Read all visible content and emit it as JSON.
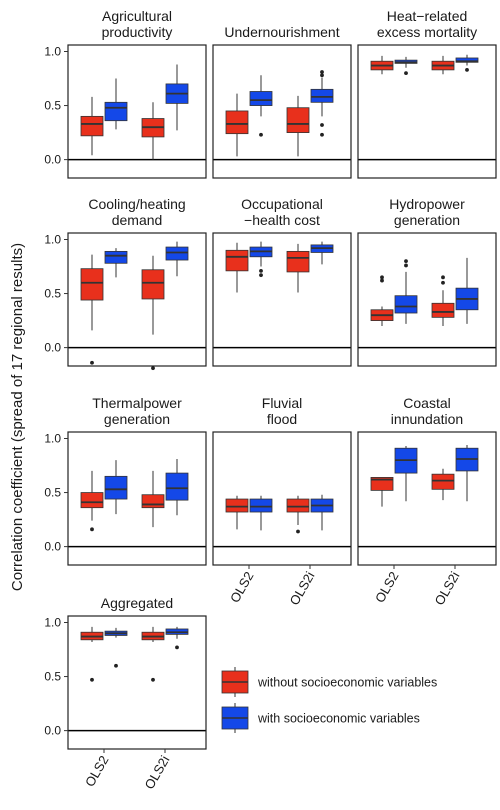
{
  "chart_data": {
    "type": "box",
    "ylabel": "Correlation coefficient (spread of 17 regional results)",
    "ylim": [
      -0.17,
      1.06
    ],
    "yticks": [
      "0.0",
      "0.5",
      "1.0"
    ],
    "categories": [
      "OLS2",
      "OLS2i"
    ],
    "series": [
      {
        "name": "without socioeconomic variables",
        "color": "#e8301c"
      },
      {
        "name": "with socioeconomic variables",
        "color": "#1448e8"
      }
    ],
    "panels": [
      {
        "title": [
          "Agricultural",
          "productivity"
        ],
        "boxes": [
          {
            "category": "OLS2",
            "series": 0,
            "min": 0.04,
            "q1": 0.22,
            "median": 0.33,
            "q3": 0.4,
            "max": 0.58,
            "outliers": []
          },
          {
            "category": "OLS2",
            "series": 1,
            "min": 0.28,
            "q1": 0.36,
            "median": 0.48,
            "q3": 0.53,
            "max": 0.75,
            "outliers": []
          },
          {
            "category": "OLS2i",
            "series": 0,
            "min": 0.0,
            "q1": 0.21,
            "median": 0.3,
            "q3": 0.38,
            "max": 0.53,
            "outliers": []
          },
          {
            "category": "OLS2i",
            "series": 1,
            "min": 0.27,
            "q1": 0.52,
            "median": 0.61,
            "q3": 0.7,
            "max": 0.88,
            "outliers": []
          }
        ]
      },
      {
        "title": [
          "Undernourishment"
        ],
        "boxes": [
          {
            "category": "OLS2",
            "series": 0,
            "min": 0.03,
            "q1": 0.24,
            "median": 0.33,
            "q3": 0.45,
            "max": 0.61,
            "outliers": []
          },
          {
            "category": "OLS2",
            "series": 1,
            "min": 0.4,
            "q1": 0.5,
            "median": 0.55,
            "q3": 0.63,
            "max": 0.78,
            "outliers": [
              0.23
            ]
          },
          {
            "category": "OLS2i",
            "series": 0,
            "min": 0.03,
            "q1": 0.25,
            "median": 0.33,
            "q3": 0.48,
            "max": 0.59,
            "outliers": []
          },
          {
            "category": "OLS2i",
            "series": 1,
            "min": 0.4,
            "q1": 0.53,
            "median": 0.58,
            "q3": 0.65,
            "max": 0.76,
            "outliers": [
              0.23,
              0.32,
              0.78,
              0.81
            ]
          }
        ]
      },
      {
        "title": [
          "Heat−related",
          "excess mortality"
        ],
        "boxes": [
          {
            "category": "OLS2",
            "series": 0,
            "min": 0.79,
            "q1": 0.83,
            "median": 0.87,
            "q3": 0.91,
            "max": 0.96,
            "outliers": []
          },
          {
            "category": "OLS2",
            "series": 1,
            "min": 0.85,
            "q1": 0.89,
            "median": 0.9,
            "q3": 0.92,
            "max": 0.95,
            "outliers": [
              0.8
            ]
          },
          {
            "category": "OLS2i",
            "series": 0,
            "min": 0.79,
            "q1": 0.83,
            "median": 0.87,
            "q3": 0.91,
            "max": 0.96,
            "outliers": []
          },
          {
            "category": "OLS2i",
            "series": 1,
            "min": 0.87,
            "q1": 0.9,
            "median": 0.91,
            "q3": 0.94,
            "max": 0.97,
            "outliers": [
              0.83
            ]
          }
        ]
      },
      {
        "title": [
          "Cooling/heating",
          "demand"
        ],
        "boxes": [
          {
            "category": "OLS2",
            "series": 0,
            "min": 0.16,
            "q1": 0.44,
            "median": 0.6,
            "q3": 0.73,
            "max": 0.86,
            "outliers": [
              -0.14
            ]
          },
          {
            "category": "OLS2",
            "series": 1,
            "min": 0.65,
            "q1": 0.78,
            "median": 0.85,
            "q3": 0.89,
            "max": 0.92,
            "outliers": []
          },
          {
            "category": "OLS2i",
            "series": 0,
            "min": 0.12,
            "q1": 0.45,
            "median": 0.6,
            "q3": 0.72,
            "max": 0.85,
            "outliers": [
              -0.19
            ]
          },
          {
            "category": "OLS2i",
            "series": 1,
            "min": 0.66,
            "q1": 0.81,
            "median": 0.88,
            "q3": 0.93,
            "max": 0.98,
            "outliers": []
          }
        ]
      },
      {
        "title": [
          "Occupational",
          "−health cost"
        ],
        "boxes": [
          {
            "category": "OLS2",
            "series": 0,
            "min": 0.51,
            "q1": 0.71,
            "median": 0.84,
            "q3": 0.9,
            "max": 0.97,
            "outliers": []
          },
          {
            "category": "OLS2",
            "series": 1,
            "min": 0.75,
            "q1": 0.84,
            "median": 0.89,
            "q3": 0.93,
            "max": 0.98,
            "outliers": [
              0.67,
              0.71
            ]
          },
          {
            "category": "OLS2i",
            "series": 0,
            "min": 0.51,
            "q1": 0.7,
            "median": 0.83,
            "q3": 0.89,
            "max": 0.96,
            "outliers": []
          },
          {
            "category": "OLS2i",
            "series": 1,
            "min": 0.77,
            "q1": 0.88,
            "median": 0.92,
            "q3": 0.95,
            "max": 0.98,
            "outliers": []
          }
        ]
      },
      {
        "title": [
          "Hydropower",
          "generation"
        ],
        "boxes": [
          {
            "category": "OLS2",
            "series": 0,
            "min": 0.2,
            "q1": 0.25,
            "median": 0.3,
            "q3": 0.35,
            "max": 0.38,
            "outliers": [
              0.62,
              0.65
            ]
          },
          {
            "category": "OLS2",
            "series": 1,
            "min": 0.22,
            "q1": 0.32,
            "median": 0.38,
            "q3": 0.48,
            "max": 0.7,
            "outliers": [
              0.76,
              0.8
            ]
          },
          {
            "category": "OLS2i",
            "series": 0,
            "min": 0.2,
            "q1": 0.28,
            "median": 0.33,
            "q3": 0.41,
            "max": 0.53,
            "outliers": [
              0.6,
              0.65
            ]
          },
          {
            "category": "OLS2i",
            "series": 1,
            "min": 0.22,
            "q1": 0.35,
            "median": 0.45,
            "q3": 0.55,
            "max": 0.83,
            "outliers": []
          }
        ]
      },
      {
        "title": [
          "Thermalpower",
          "generation"
        ],
        "boxes": [
          {
            "category": "OLS2",
            "series": 0,
            "min": 0.24,
            "q1": 0.36,
            "median": 0.41,
            "q3": 0.5,
            "max": 0.7,
            "outliers": [
              0.16
            ]
          },
          {
            "category": "OLS2",
            "series": 1,
            "min": 0.3,
            "q1": 0.44,
            "median": 0.53,
            "q3": 0.65,
            "max": 0.8,
            "outliers": []
          },
          {
            "category": "OLS2i",
            "series": 0,
            "min": 0.18,
            "q1": 0.36,
            "median": 0.39,
            "q3": 0.48,
            "max": 0.7,
            "outliers": []
          },
          {
            "category": "OLS2i",
            "series": 1,
            "min": 0.29,
            "q1": 0.43,
            "median": 0.54,
            "q3": 0.68,
            "max": 0.81,
            "outliers": []
          }
        ]
      },
      {
        "title": [
          "Fluvial",
          "flood"
        ],
        "boxes": [
          {
            "category": "OLS2",
            "series": 0,
            "min": 0.16,
            "q1": 0.32,
            "median": 0.37,
            "q3": 0.44,
            "max": 0.47,
            "outliers": []
          },
          {
            "category": "OLS2",
            "series": 1,
            "min": 0.15,
            "q1": 0.32,
            "median": 0.37,
            "q3": 0.44,
            "max": 0.47,
            "outliers": []
          },
          {
            "category": "OLS2i",
            "series": 0,
            "min": 0.2,
            "q1": 0.32,
            "median": 0.37,
            "q3": 0.44,
            "max": 0.47,
            "outliers": [
              0.14
            ]
          },
          {
            "category": "OLS2i",
            "series": 1,
            "min": 0.15,
            "q1": 0.32,
            "median": 0.38,
            "q3": 0.44,
            "max": 0.48,
            "outliers": []
          }
        ]
      },
      {
        "title": [
          "Coastal",
          "innundation"
        ],
        "boxes": [
          {
            "category": "OLS2",
            "series": 0,
            "min": 0.37,
            "q1": 0.52,
            "median": 0.62,
            "q3": 0.64,
            "max": 0.64,
            "outliers": []
          },
          {
            "category": "OLS2",
            "series": 1,
            "min": 0.42,
            "q1": 0.68,
            "median": 0.8,
            "q3": 0.91,
            "max": 0.93,
            "outliers": []
          },
          {
            "category": "OLS2i",
            "series": 0,
            "min": 0.43,
            "q1": 0.53,
            "median": 0.61,
            "q3": 0.67,
            "max": 0.72,
            "outliers": []
          },
          {
            "category": "OLS2i",
            "series": 1,
            "min": 0.42,
            "q1": 0.7,
            "median": 0.81,
            "q3": 0.91,
            "max": 0.94,
            "outliers": []
          }
        ]
      },
      {
        "title": [
          "Aggregated"
        ],
        "boxes": [
          {
            "category": "OLS2",
            "series": 0,
            "min": 0.82,
            "q1": 0.84,
            "median": 0.87,
            "q3": 0.91,
            "max": 0.96,
            "outliers": [
              0.47
            ]
          },
          {
            "category": "OLS2",
            "series": 1,
            "min": 0.86,
            "q1": 0.88,
            "median": 0.9,
            "q3": 0.92,
            "max": 0.95,
            "outliers": [
              0.6
            ]
          },
          {
            "category": "OLS2i",
            "series": 0,
            "min": 0.82,
            "q1": 0.84,
            "median": 0.87,
            "q3": 0.91,
            "max": 0.96,
            "outliers": [
              0.47
            ]
          },
          {
            "category": "OLS2i",
            "series": 1,
            "min": 0.85,
            "q1": 0.89,
            "median": 0.91,
            "q3": 0.94,
            "max": 0.96,
            "outliers": [
              0.77
            ]
          }
        ]
      }
    ],
    "grid": false,
    "reference_line": 0,
    "legend_position": "bottom-right"
  }
}
